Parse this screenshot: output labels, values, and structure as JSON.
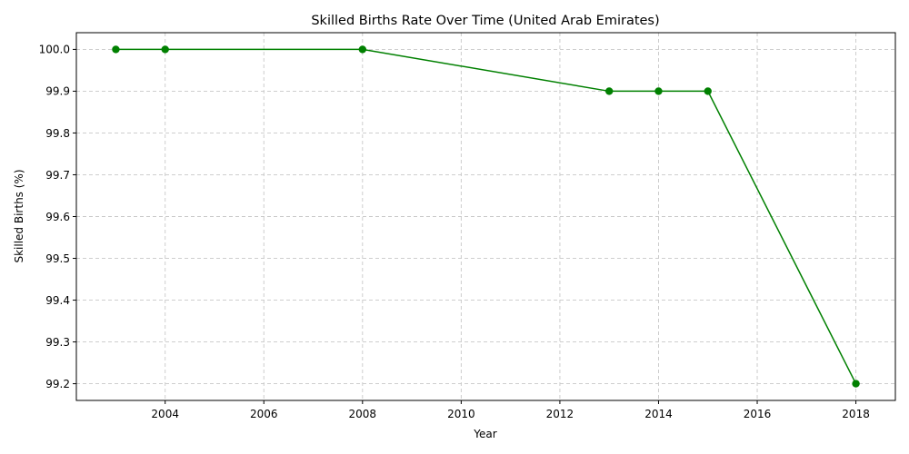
{
  "chart_data": {
    "type": "line",
    "title": "Skilled Births Rate Over Time (United Arab Emirates)",
    "xlabel": "Year",
    "ylabel": "Skilled Births (%)",
    "xlim": [
      2002.2,
      2018.8
    ],
    "ylim": [
      99.16,
      100.04
    ],
    "xticks": [
      2004,
      2006,
      2008,
      2010,
      2012,
      2014,
      2016,
      2018
    ],
    "yticks": [
      99.2,
      99.3,
      99.4,
      99.5,
      99.6,
      99.7,
      99.8,
      99.9,
      100.0
    ],
    "grid": true,
    "series": [
      {
        "color": "#008000",
        "marker": "circle",
        "x": [
          2003,
          2004,
          2008,
          2013,
          2014,
          2015,
          2018
        ],
        "y": [
          100.0,
          100.0,
          100.0,
          99.9,
          99.9,
          99.9,
          99.2
        ]
      }
    ]
  }
}
